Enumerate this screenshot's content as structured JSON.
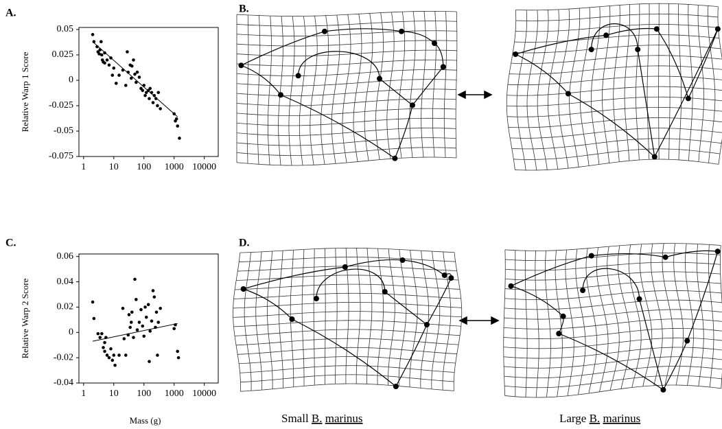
{
  "chart_data": [
    {
      "type": "scatter",
      "panel": "A.",
      "ylabel": "Relative Warp 1 Score",
      "xscale": "log",
      "xlim": [
        0.7,
        29000
      ],
      "ylim": [
        -0.075,
        0.052
      ],
      "xticks": [
        1,
        10,
        100,
        1000,
        10000
      ],
      "yticks": [
        0.05,
        0.025,
        0,
        -0.025,
        -0.05,
        -0.075
      ],
      "color": "#000000",
      "x": [
        2,
        2.2,
        2.8,
        3,
        3.3,
        3.5,
        3.8,
        4,
        4.2,
        4.5,
        5,
        5,
        6,
        7,
        8,
        9,
        10,
        12,
        15,
        20,
        25,
        28,
        30,
        35,
        38,
        40,
        45,
        50,
        55,
        60,
        70,
        80,
        90,
        100,
        110,
        120,
        140,
        150,
        160,
        180,
        200,
        220,
        250,
        280,
        300,
        350,
        1000,
        1100,
        1200,
        1300,
        1500
      ],
      "y": [
        0.045,
        0.038,
        0.033,
        0.028,
        0.026,
        0.03,
        0.038,
        0.025,
        0.02,
        0.018,
        0.027,
        0.017,
        0.02,
        0.015,
        0.022,
        0.005,
        0.012,
        -0.003,
        0.005,
        0.01,
        -0.005,
        0.028,
        0.008,
        0.015,
        0.002,
        0.014,
        0.02,
        0.006,
        -0.002,
        0.008,
        0.003,
        -0.008,
        -0.01,
        -0.005,
        -0.015,
        -0.012,
        -0.01,
        -0.018,
        -0.008,
        -0.012,
        -0.022,
        -0.015,
        -0.018,
        -0.025,
        -0.012,
        -0.028,
        -0.033,
        -0.04,
        -0.038,
        -0.045,
        -0.057
      ],
      "fit": {
        "x": [
          2,
          1300
        ],
        "y": [
          0.038,
          -0.036
        ]
      }
    },
    {
      "type": "scatter",
      "panel": "C.",
      "ylabel": "Relative Warp 2 Score",
      "xlabel": "Mass (g)",
      "xscale": "log",
      "xlim": [
        0.7,
        29000
      ],
      "ylim": [
        -0.04,
        0.062
      ],
      "xticks": [
        1,
        10,
        100,
        1000,
        10000
      ],
      "yticks": [
        0.06,
        0.04,
        0.02,
        0,
        -0.02,
        -0.04
      ],
      "color": "#000000",
      "x": [
        2,
        2.2,
        3,
        3.5,
        4,
        4.5,
        5,
        5,
        5.5,
        6,
        7,
        8,
        9,
        10,
        11,
        15,
        20,
        22,
        25,
        30,
        32,
        35,
        38,
        40,
        45,
        50,
        55,
        60,
        70,
        80,
        90,
        100,
        110,
        120,
        140,
        150,
        160,
        180,
        200,
        220,
        240,
        260,
        280,
        300,
        350,
        1000,
        1100,
        1300,
        1400
      ],
      "y": [
        0.024,
        0.011,
        -0.001,
        -0.004,
        -0.001,
        -0.012,
        -0.015,
        -0.008,
        -0.004,
        -0.018,
        -0.02,
        -0.013,
        -0.022,
        -0.018,
        -0.026,
        -0.018,
        0.019,
        -0.005,
        -0.018,
        -0.002,
        0.014,
        0.004,
        0.008,
        0.016,
        -0.004,
        0.042,
        0.026,
        0.002,
        0.008,
        0.018,
        0.005,
        -0.003,
        0.02,
        0.012,
        0.022,
        -0.023,
        0.001,
        0.009,
        0.033,
        0.028,
        0.004,
        0.016,
        -0.018,
        0.008,
        0.019,
        0.003,
        0.006,
        -0.015,
        -0.02
      ],
      "fit": {
        "x": [
          2,
          1300
        ],
        "y": [
          -0.007,
          0.007
        ]
      }
    }
  ],
  "panels": {
    "b": "B.",
    "d": "D."
  },
  "captions": [
    {
      "size": "Small",
      "genus": "B.",
      "species": "marinus"
    },
    {
      "size": "Large",
      "genus": "B.",
      "species": "marinus"
    }
  ]
}
